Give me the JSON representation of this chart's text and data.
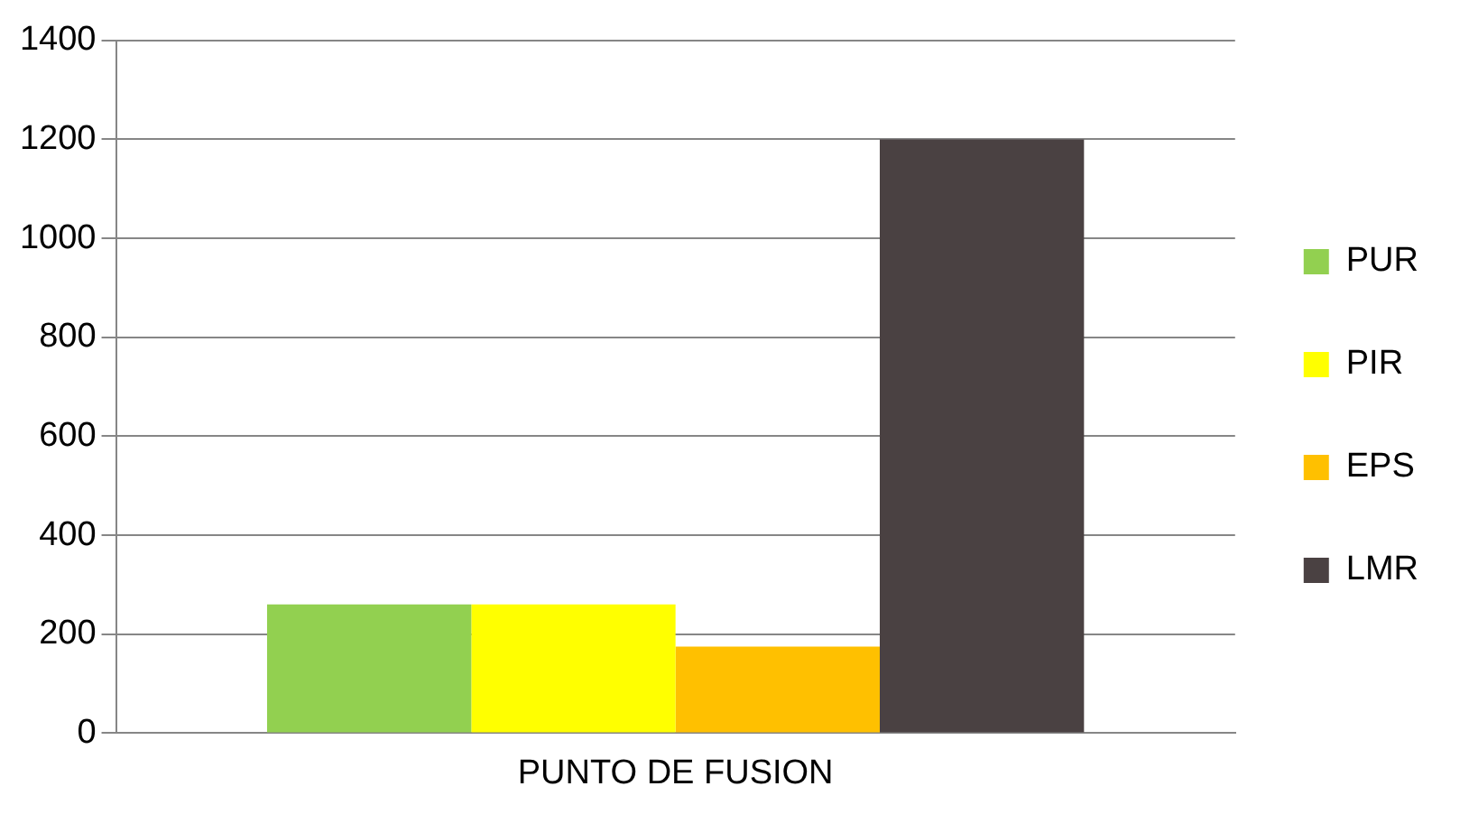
{
  "chart_data": {
    "type": "bar",
    "categories": [
      "PUNTO DE FUSION"
    ],
    "series": [
      {
        "name": "PUR",
        "color": "#92d050",
        "values": [
          260
        ]
      },
      {
        "name": "PIR",
        "color": "#ffff00",
        "values": [
          260
        ]
      },
      {
        "name": "EPS",
        "color": "#ffc000",
        "values": [
          175
        ]
      },
      {
        "name": "LMR",
        "color": "#4a4142",
        "values": [
          1200
        ]
      }
    ],
    "ylim": [
      0,
      1400
    ],
    "yticks": [
      0,
      200,
      400,
      600,
      800,
      1000,
      1200,
      1400
    ],
    "grid": "y",
    "legend": "right"
  }
}
